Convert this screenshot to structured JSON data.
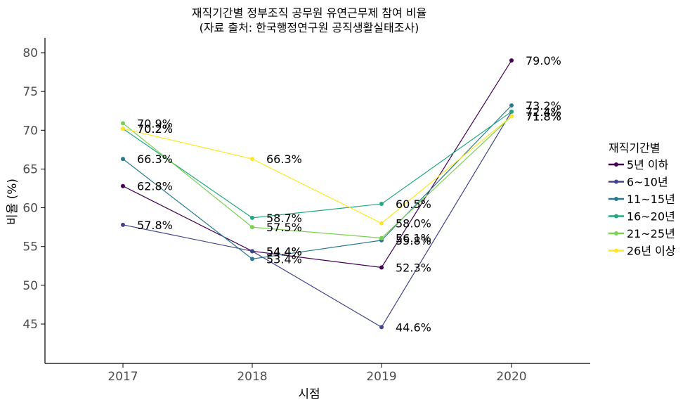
{
  "chart_data": {
    "type": "line",
    "title": "재직기간별 정부조직 공무원 유연근무제 참여 비율",
    "subtitle": "(자료 출처: 한국행정연구원 공직생활실태조사)",
    "xlabel": "시점",
    "ylabel": "비율 (%)",
    "x": [
      "2017",
      "2018",
      "2019",
      "2020"
    ],
    "ylim": [
      40,
      82
    ],
    "yticks": [
      45,
      50,
      55,
      60,
      65,
      70,
      75,
      80
    ],
    "grid": false,
    "legend": {
      "title": "재직기간별",
      "position": "right"
    },
    "series": [
      {
        "name": "5년 이하",
        "color": "#440154",
        "values": [
          62.8,
          54.4,
          52.3,
          79.0
        ],
        "labels": [
          "62.8%",
          "54.4%",
          "52.3%",
          "79.0%"
        ]
      },
      {
        "name": "6~10년",
        "color": "#414487",
        "values": [
          57.8,
          54.4,
          44.6,
          72.4
        ],
        "labels": [
          "57.8%",
          "54.4%",
          "44.6%",
          "72.4%"
        ]
      },
      {
        "name": "11~15년",
        "color": "#2A788E",
        "values": [
          66.3,
          53.4,
          55.8,
          73.2
        ],
        "labels": [
          "66.3%",
          "53.4%",
          "55.8%",
          "73.2%"
        ]
      },
      {
        "name": "16~20년",
        "color": "#22A884",
        "values": [
          70.2,
          58.7,
          60.5,
          72.4
        ],
        "labels": [
          "70.2%",
          "58.7%",
          "60.5%",
          "72.4%"
        ]
      },
      {
        "name": "21~25년",
        "color": "#7AD151",
        "values": [
          70.9,
          57.5,
          56.1,
          71.8
        ],
        "labels": [
          "70.9%",
          "57.5%",
          "56.1%",
          "71.8%"
        ]
      },
      {
        "name": "26년 이상",
        "color": "#FDE725",
        "values": [
          70.2,
          66.3,
          58.0,
          71.8
        ],
        "labels": [
          "70.2%",
          "66.3%",
          "58.0%",
          "71.8%"
        ]
      }
    ]
  }
}
